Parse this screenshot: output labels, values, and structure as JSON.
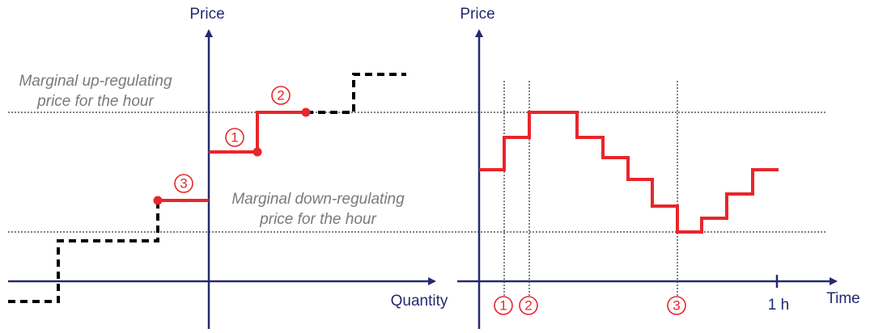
{
  "left_panel": {
    "y_axis_label": "Price",
    "x_axis_label": "Quantity",
    "up_label": [
      "Marginal up-regulating",
      "price for the hour"
    ],
    "down_label": [
      "Marginal down-regulating",
      "price for the hour"
    ],
    "markers": [
      "1",
      "2",
      "3"
    ]
  },
  "right_panel": {
    "y_axis_label": "Price",
    "x_axis_label": "Time",
    "tick_label": "1 h",
    "markers": [
      "1",
      "2",
      "3"
    ]
  }
}
